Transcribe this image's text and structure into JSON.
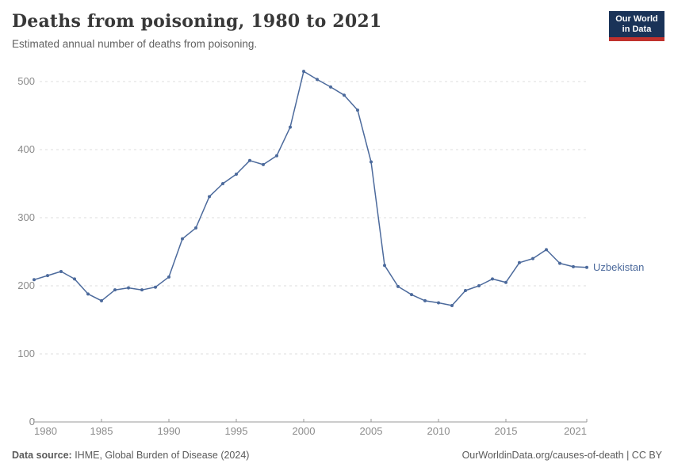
{
  "header": {
    "title": "Deaths from poisoning, 1980 to 2021",
    "subtitle": "Estimated annual number of deaths from poisoning.",
    "logo": {
      "line1": "Our World",
      "line2": "in Data",
      "bg_color": "#1a3358",
      "bar_color": "#c0312d"
    }
  },
  "chart_data": {
    "type": "line",
    "title": "Deaths from poisoning, 1980 to 2021",
    "x": [
      1980,
      1981,
      1982,
      1983,
      1984,
      1985,
      1986,
      1987,
      1988,
      1989,
      1990,
      1991,
      1992,
      1993,
      1994,
      1995,
      1996,
      1997,
      1998,
      1999,
      2000,
      2001,
      2002,
      2003,
      2004,
      2005,
      2006,
      2007,
      2008,
      2009,
      2010,
      2011,
      2012,
      2013,
      2014,
      2015,
      2016,
      2017,
      2018,
      2019,
      2020,
      2021
    ],
    "series": [
      {
        "name": "Uzbekistan",
        "color": "#4c6a9c",
        "values": [
          209,
          215,
          221,
          210,
          188,
          178,
          194,
          197,
          194,
          198,
          213,
          269,
          285,
          331,
          350,
          364,
          384,
          378,
          391,
          433,
          515,
          503,
          492,
          480,
          458,
          382,
          230,
          199,
          187,
          178,
          175,
          171,
          193,
          200,
          210,
          205,
          234,
          240,
          253,
          233,
          228,
          227
        ]
      }
    ],
    "xlabel": "",
    "ylabel": "",
    "xlim": [
      1980,
      2021
    ],
    "ylim": [
      0,
      540
    ],
    "yticks": [
      0,
      100,
      200,
      300,
      400,
      500
    ],
    "xticks": [
      1980,
      1985,
      1990,
      1995,
      2000,
      2005,
      2010,
      2015,
      2021
    ],
    "grid": true,
    "legend_position": "end-of-line-label",
    "grid_color": "#dcdcdc",
    "axis_color": "#999999",
    "tick_label_color": "#8b8b8b"
  },
  "footer": {
    "source_label": "Data source:",
    "source_text": " IHME, Global Burden of Disease (2024)",
    "credit": "OurWorldinData.org/causes-of-death | CC BY"
  }
}
